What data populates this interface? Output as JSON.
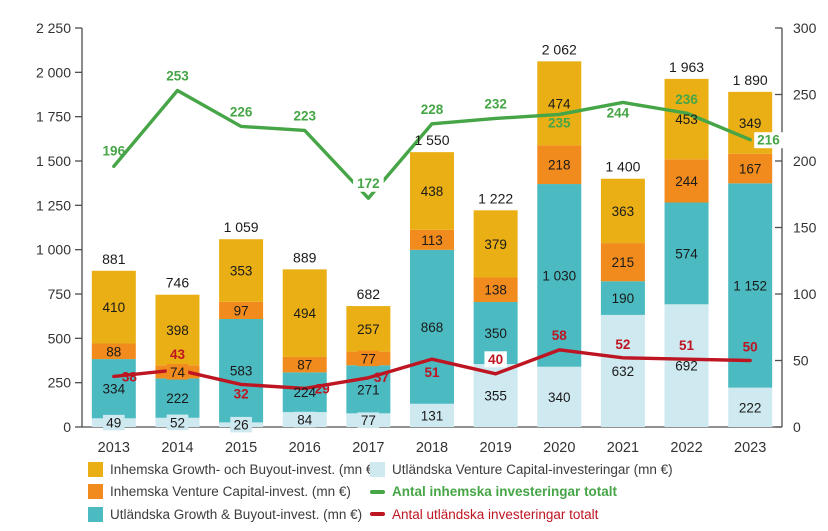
{
  "chart_data": {
    "type": "bar",
    "variant": "stacked-columns-with-two-lines",
    "grid": false,
    "legend_position": "bottom",
    "number_format": "space-thousands",
    "categories": [
      "2013",
      "2014",
      "2015",
      "2016",
      "2017",
      "2018",
      "2019",
      "2020",
      "2021",
      "2022",
      "2023"
    ],
    "stack_order": "bottom-to-top",
    "bar_series": [
      {
        "name": "Utländska Venture Capital-investeringar (mn €)",
        "color": "#CFE9F1",
        "values": [
          49,
          52,
          26,
          84,
          77,
          131,
          355,
          340,
          632,
          692,
          222
        ]
      },
      {
        "name": "Utländska Growth & Buyout-invest. (mn €)",
        "color": "#4BBAC1",
        "values": [
          334,
          222,
          583,
          224,
          271,
          868,
          350,
          1030,
          190,
          574,
          1152
        ]
      },
      {
        "name": "Inhemska Venture Capital-invest. (mn €)",
        "color": "#F28B1D",
        "values": [
          88,
          74,
          97,
          87,
          77,
          113,
          138,
          218,
          215,
          244,
          167
        ]
      },
      {
        "name": "Inhemska Growth- och Buyout-invest. (mn €)",
        "color": "#E9AF15",
        "values": [
          410,
          398,
          353,
          494,
          257,
          438,
          379,
          474,
          363,
          453,
          349
        ]
      }
    ],
    "bar_totals": [
      881,
      746,
      1059,
      889,
      682,
      1550,
      1222,
      2062,
      1400,
      1963,
      1890
    ],
    "line_series": [
      {
        "name": "Antal inhemska investeringar totalt",
        "color": "#46A546",
        "axis": "right",
        "values": [
          196,
          253,
          226,
          223,
          172,
          228,
          232,
          235,
          244,
          236,
          216
        ]
      },
      {
        "name": "Antal utländska investeringar totalt",
        "color": "#BE1522",
        "axis": "right",
        "values": [
          38,
          43,
          32,
          29,
          37,
          51,
          40,
          58,
          52,
          51,
          50
        ]
      }
    ],
    "left_axis": {
      "min": 0,
      "max": 2250,
      "step": 250,
      "tick_labels": [
        "0",
        "250",
        "500",
        "750",
        "1 000",
        "1 250",
        "1 500",
        "1 750",
        "2 000",
        "2 250"
      ]
    },
    "right_axis": {
      "min": 0,
      "max": 300,
      "step": 50,
      "tick_labels": [
        "0",
        "50",
        "100",
        "150",
        "200",
        "250",
        "300"
      ]
    }
  },
  "legend": {
    "items": [
      {
        "label": "Inhemska Growth- och Buyout-invest. (mn €)",
        "color": "#E9AF15",
        "marker": "box",
        "text_color": "#3C3C3C",
        "bold": false
      },
      {
        "label": "Inhemska Venture Capital-invest. (mn €)",
        "color": "#F28B1D",
        "marker": "box",
        "text_color": "#3C3C3C",
        "bold": false
      },
      {
        "label": "Utländska Growth & Buyout-invest. (mn €)",
        "color": "#4BBAC1",
        "marker": "box",
        "text_color": "#3C3C3C",
        "bold": false
      },
      {
        "label": "Utländska Venture Capital-investeringar (mn €)",
        "color": "#CFE9F1",
        "marker": "box",
        "text_color": "#3C3C3C",
        "bold": false
      },
      {
        "label": "Antal inhemska investeringar totalt",
        "color": "#46A546",
        "marker": "line",
        "text_color": "#46A546",
        "bold": true
      },
      {
        "label": "Antal utländska investeringar totalt",
        "color": "#BE1522",
        "marker": "line",
        "text_color": "#BE1522",
        "bold": false
      }
    ]
  }
}
